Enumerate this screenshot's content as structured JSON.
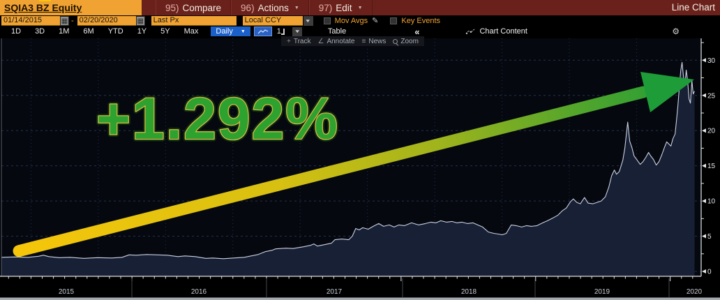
{
  "titlebar": {
    "security": "SQIA3 BZ Equity",
    "menus": [
      {
        "num": "95)",
        "label": "Compare",
        "arrow": false
      },
      {
        "num": "96)",
        "label": "Actions",
        "arrow": true
      },
      {
        "num": "97)",
        "label": "Edit",
        "arrow": true
      }
    ],
    "mode_label": "Line Chart"
  },
  "controls": {
    "date_from": "01/14/2015",
    "date_separator": "-",
    "date_to": "02/20/2020",
    "price_field": "Last Px",
    "currency": "Local CCY",
    "mov_avgs_label": "Mov Avgs",
    "key_events_label": "Key Events"
  },
  "toolbar": {
    "ranges": [
      "1D",
      "3D",
      "1M",
      "6M",
      "YTD",
      "1Y",
      "5Y",
      "Max"
    ],
    "period_label": "Daily",
    "panel_count": "1",
    "table_label": "Table",
    "collapse_label": "«",
    "chart_content_label": "Chart Content"
  },
  "annotate_bar": {
    "track": "Track",
    "annotate": "Annotate",
    "news": "News",
    "zoom": "Zoom"
  },
  "icons": {
    "calendar": "▦",
    "caret_down": "▼",
    "pencil": "✎",
    "gear": "⚙",
    "plus": "+",
    "angle": "∠",
    "news": "≡"
  },
  "chart_data": {
    "type": "area",
    "title": "SQIA3 BZ Equity — Last Px, Daily, Local CCY",
    "xlabel": "",
    "ylabel": "",
    "xlim": [
      2015.03,
      2020.23
    ],
    "ylim": [
      0,
      33
    ],
    "yticks": [
      0,
      5,
      10,
      15,
      20,
      25,
      30
    ],
    "year_labels": [
      "2015",
      "2016",
      "2017",
      "2018",
      "2019",
      "2020"
    ],
    "grid": true,
    "legend": "none",
    "x": [
      2015.031,
      2015.124,
      2015.228,
      2015.306,
      2015.342,
      2015.383,
      2015.461,
      2015.539,
      2015.642,
      2015.746,
      2015.85,
      2015.927,
      2015.979,
      2016.031,
      2016.109,
      2016.187,
      2016.264,
      2016.342,
      2016.394,
      2016.471,
      2016.549,
      2016.601,
      2016.679,
      2016.756,
      2016.834,
      2016.886,
      2016.938,
      2016.99,
      2017.041,
      2017.067,
      2017.145,
      2017.197,
      2017.275,
      2017.326,
      2017.352,
      2017.378,
      2017.43,
      2017.482,
      2017.508,
      2017.56,
      2017.611,
      2017.637,
      2017.663,
      2017.689,
      2017.715,
      2017.756,
      2017.793,
      2017.834,
      2017.87,
      2017.912,
      2017.948,
      2017.984,
      2018.026,
      2018.078,
      2018.13,
      2018.181,
      2018.223,
      2018.259,
      2018.295,
      2018.337,
      2018.378,
      2018.414,
      2018.451,
      2018.492,
      2018.534,
      2018.57,
      2018.606,
      2018.648,
      2018.689,
      2018.725,
      2018.751,
      2018.782,
      2018.819,
      2018.855,
      2018.896,
      2018.933,
      2018.969,
      2019.01,
      2019.052,
      2019.088,
      2019.13,
      2019.166,
      2019.197,
      2019.228,
      2019.259,
      2019.28,
      2019.306,
      2019.332,
      2019.363,
      2019.389,
      2019.425,
      2019.456,
      2019.487,
      2019.518,
      2019.544,
      2019.565,
      2019.585,
      2019.601,
      2019.622,
      2019.648,
      2019.663,
      2019.684,
      2019.699,
      2019.715,
      2019.731,
      2019.751,
      2019.777,
      2019.798,
      2019.819,
      2019.839,
      2019.855,
      2019.876,
      2019.896,
      2019.917,
      2019.938,
      2019.959,
      2019.974,
      2019.99,
      2020.005,
      2020.021,
      2020.036,
      2020.047,
      2020.057,
      2020.067,
      2020.078,
      2020.088,
      2020.098,
      2020.109,
      2020.119,
      2020.13,
      2020.14,
      2020.15,
      2020.161,
      2020.171,
      2020.181
    ],
    "values": [
      2.0,
      2.05,
      2.0,
      2.15,
      2.3,
      2.1,
      1.95,
      2.0,
      1.85,
      1.95,
      1.9,
      2.0,
      2.35,
      2.3,
      2.4,
      2.35,
      2.3,
      2.1,
      2.2,
      2.1,
      1.85,
      1.9,
      1.8,
      1.9,
      2.0,
      2.2,
      2.4,
      2.8,
      3.0,
      3.2,
      3.3,
      3.25,
      3.5,
      3.7,
      3.9,
      3.6,
      3.8,
      4.0,
      4.5,
      4.6,
      4.5,
      5.0,
      6.1,
      5.9,
      6.2,
      6.0,
      6.4,
      6.8,
      6.4,
      6.6,
      6.3,
      6.6,
      6.5,
      6.9,
      6.6,
      6.8,
      7.0,
      6.9,
      7.2,
      7.0,
      7.1,
      6.9,
      7.0,
      6.8,
      6.9,
      6.6,
      6.3,
      5.6,
      5.4,
      5.3,
      5.2,
      5.4,
      6.6,
      6.5,
      6.3,
      6.5,
      6.4,
      6.5,
      6.9,
      7.2,
      7.6,
      8.0,
      8.6,
      9.0,
      9.9,
      10.3,
      9.8,
      9.6,
      10.5,
      9.7,
      9.6,
      9.8,
      10.0,
      10.6,
      12.0,
      13.6,
      14.4,
      13.8,
      14.2,
      15.8,
      17.5,
      21.2,
      18.5,
      17.6,
      16.4,
      15.9,
      15.2,
      15.6,
      16.2,
      16.9,
      16.4,
      15.9,
      15.1,
      15.6,
      16.6,
      17.7,
      18.4,
      18.1,
      17.8,
      18.9,
      19.5,
      21.5,
      23.5,
      26.0,
      28.5,
      29.7,
      27.8,
      26.4,
      28.6,
      27.0,
      24.5,
      23.9,
      27.1,
      25.2,
      25.6
    ],
    "annotation": {
      "text": "+1.292%",
      "fill": "#2da22f",
      "outline": "#d9b945"
    },
    "arrow": {
      "start_year": 2015.16,
      "start_value": 2.9,
      "end_year": 2020.2,
      "end_value": 27.2,
      "color_start": "#f6c60a",
      "color_end": "#1d9c38"
    },
    "colors": {
      "plot_bg": "#05080f",
      "area_fill": "#182036",
      "line": "#ccd3e2",
      "grid": "#27304a",
      "vgrid": "#223052",
      "axis": "#e4e6ea"
    }
  }
}
